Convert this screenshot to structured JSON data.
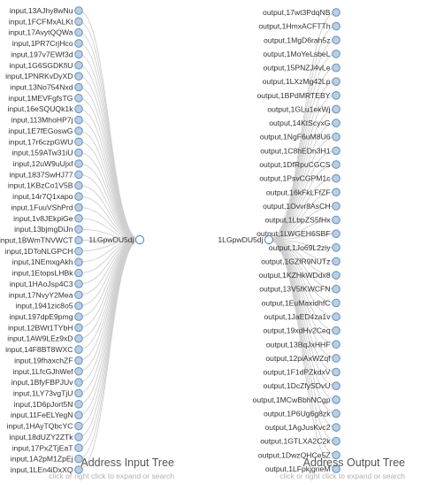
{
  "input_tree": {
    "root_label": "1LGpwDU5dj",
    "title": "Address Input Tree",
    "hint": "click or right click to expand or search",
    "nodes": [
      "input,13AJhy8wNu",
      "input,1FCFMxALKt",
      "input,17AvytQQWa",
      "input,1PR7CrjHco",
      "input,197v7EWf3d",
      "input,1G6SGDKfiU",
      "input,1PNRKvDyXD",
      "input,13No754Nxd",
      "input,1MEVFgfsTG",
      "input,16eSQUQk1k",
      "input,113MhoHP7j",
      "input,1E7fEGoswG",
      "input,17r6czpGWU",
      "input,159ATw31iU",
      "input,12uW9uUjxf",
      "input,1837SwHJ77",
      "input,1KBzCo1V5B",
      "input,14r7Q1xapo",
      "input,1FuuVShPrd",
      "input,1v8JEkpiGe",
      "input,13bjmgDiJn",
      "input,1BWmTNVWCT",
      "input,1DToNLGPCH",
      "input,1NEmxgAkh",
      "input,1EtopsLHBk",
      "input,1HAoJsp4C3",
      "input,17NvyY2Mea",
      "input,1941zic8o5",
      "input,197dpE9pmg",
      "input,12BWt1TYbH",
      "input,1AW9LEz9xD",
      "input,14F8BT8WXC",
      "input,19fhaxchZF",
      "input,1LfcGJhWef",
      "input,1BfyFBPJUv",
      "input,1LY73vgTjU",
      "input,1D6pJort5N",
      "input,11FeELYegN",
      "input,1HAyTQbcYC",
      "input,18dUZY2ZTk",
      "input,17PxZTjEaT",
      "input,1A2pM1ZpEj",
      "input,1LEn4iDxXQ"
    ]
  },
  "output_tree": {
    "root_label": "1LGpwDU5dj",
    "title": "Address Output Tree",
    "hint": "click or right click to expand or search",
    "nodes": [
      "output,17wt3PdqNB",
      "output,1HmxACFTTh",
      "output,1MgD6rah5z",
      "output,1MoYeLsbeL",
      "output,15PNZJ4vLe",
      "output,1LXzMg42Lp",
      "output,1BPdMRTEBY",
      "output,1GLu1ekWj",
      "output,14KtScyxG",
      "output,1NgF6uM8U6",
      "output,1C8hEDn3H1",
      "output,1DfRpuCGCS",
      "output,1PsvCGPM1c",
      "output,16kFkLFfZF",
      "output,1Ovvr8AsCH",
      "output,1LbpZS5fHx",
      "output,1LWGEH6SBF",
      "output,1Jo69L2ziy",
      "output,1GZfR9NUTz",
      "output,1KZHkWDdx8",
      "output,13V5fKWCFN",
      "output,1EuMaxidhfC",
      "output,1JaED4za1v",
      "output,19xdHv2Ceq",
      "output,13BqJxHHF",
      "output,12piAxWZqf",
      "output,1F1dPZkdxV",
      "output,1DcZfySDvU",
      "output,1MCwBbhNCgp",
      "output,1P6Ug6g8zk",
      "output,1AgJusKvc2",
      "output,1GTLXA2C2k",
      "output,1DwzQHCe5Z",
      "output,1LFpkjgneM"
    ]
  }
}
